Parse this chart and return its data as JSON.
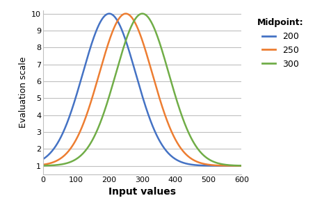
{
  "title": "",
  "xlabel": "Input values",
  "ylabel": "Evaluation scale",
  "xlim": [
    0,
    600
  ],
  "ylim": [
    0.5,
    10.2
  ],
  "xticks": [
    0,
    100,
    200,
    300,
    400,
    500,
    600
  ],
  "yticks": [
    1,
    2,
    3,
    4,
    5,
    6,
    7,
    8,
    9,
    10
  ],
  "midpoints": [
    200,
    250,
    300
  ],
  "sigma": 80,
  "scale_min": 1,
  "scale_max": 10,
  "colors": [
    "#4472C4",
    "#ED7D31",
    "#70AD47"
  ],
  "legend_title": "Midpoint:",
  "legend_labels": [
    "200",
    "250",
    "300"
  ],
  "background_color": "#FFFFFF",
  "grid_color": "#BFBFBF",
  "xlabel_fontsize": 10,
  "ylabel_fontsize": 9,
  "tick_fontsize": 8,
  "legend_fontsize": 9,
  "legend_title_fontsize": 9,
  "linewidth": 1.8
}
